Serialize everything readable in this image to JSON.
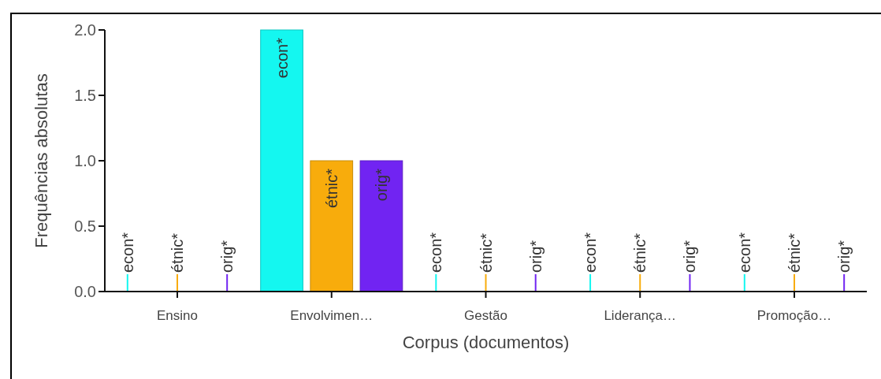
{
  "chart_data": {
    "type": "bar",
    "xlabel": "Corpus (documentos)",
    "ylabel": "Frequências absolutas",
    "categories": [
      "Ensino",
      "Envolvimen…",
      "Gestão",
      "Liderança…",
      "Promoção…"
    ],
    "series": [
      {
        "name": "econ*",
        "color": "#14f7f0",
        "values": [
          0,
          2,
          0,
          0,
          0
        ]
      },
      {
        "name": "étnic*",
        "color": "#f8ac0c",
        "values": [
          0,
          1,
          0,
          0,
          0
        ]
      },
      {
        "name": "orig*",
        "color": "#7124f2",
        "values": [
          0,
          1,
          0,
          0,
          0
        ]
      }
    ],
    "ylim": [
      0,
      2
    ],
    "yticks": [
      {
        "value": 0,
        "label": "0.0"
      },
      {
        "value": 0.5,
        "label": "0.5"
      },
      {
        "value": 1,
        "label": "1.0"
      },
      {
        "value": 1.5,
        "label": "1.5"
      },
      {
        "value": 2,
        "label": "2.0"
      }
    ],
    "grid": false
  }
}
